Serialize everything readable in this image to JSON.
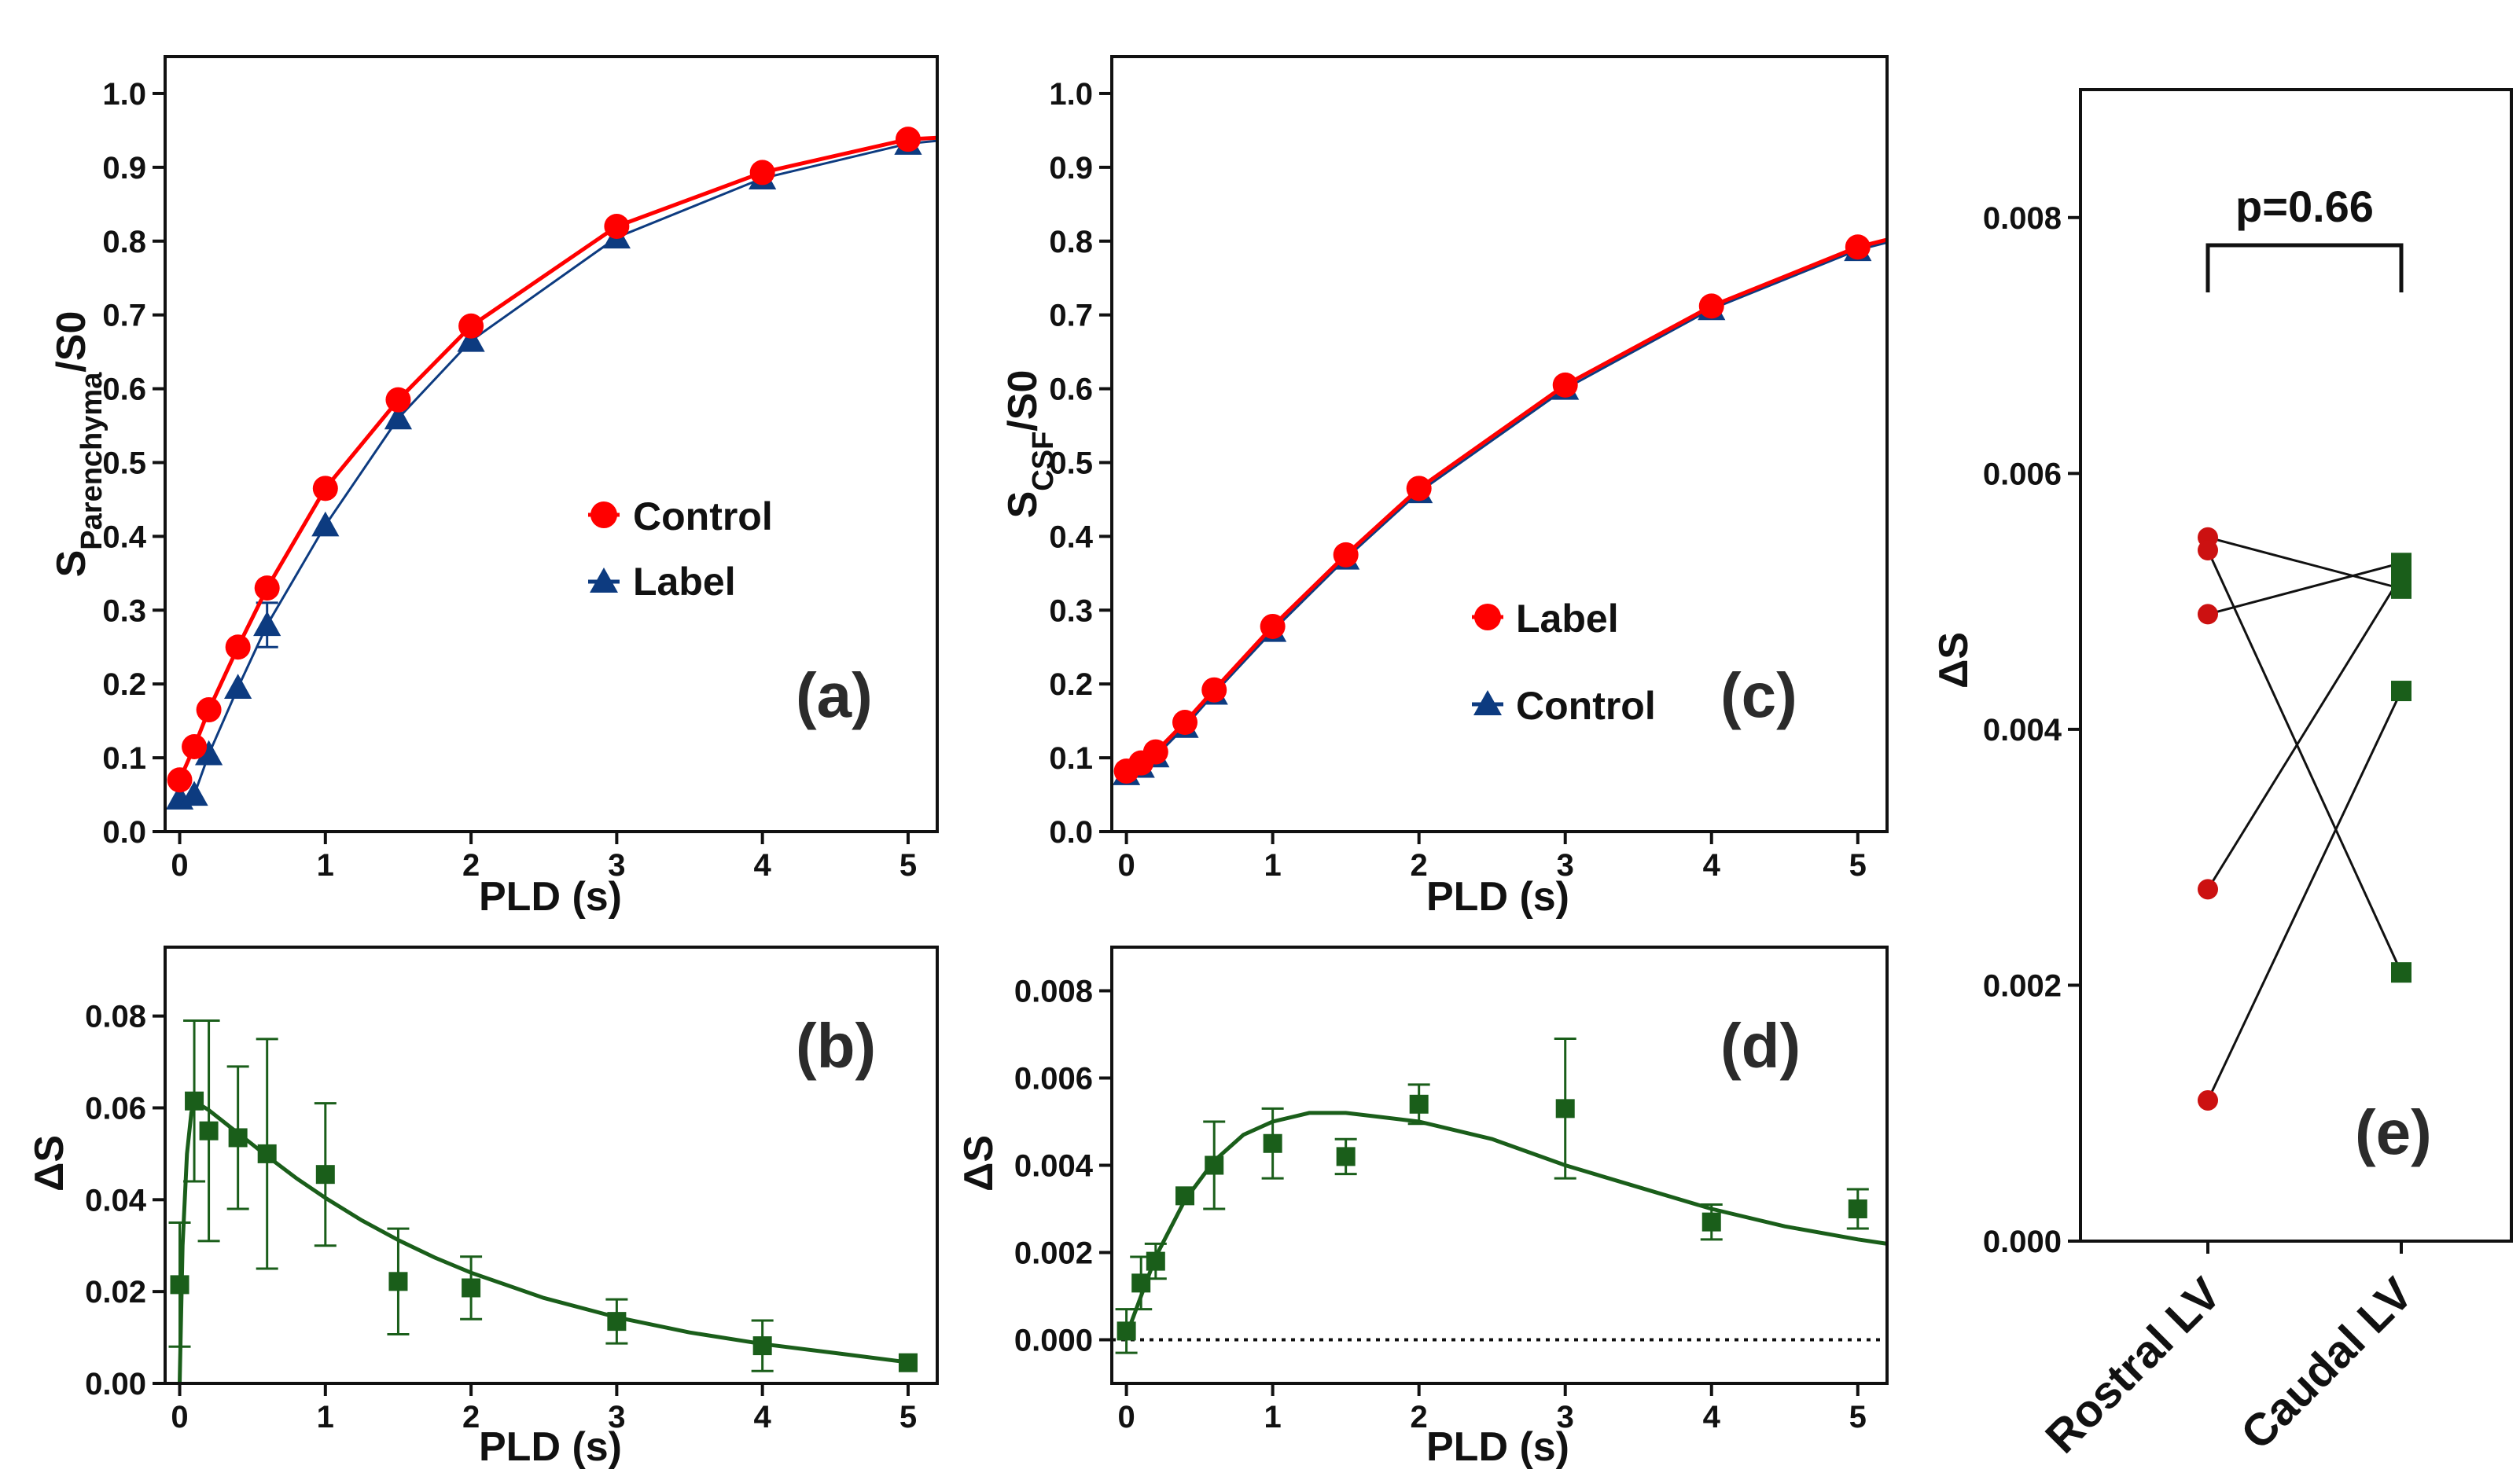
{
  "chart_data": [
    {
      "id": "a",
      "type": "line",
      "panel_label": "(a)",
      "xlabel": "PLD (s)",
      "ylabel_main": "S",
      "ylabel_sub": "Parenchyma",
      "ylabel_tail": "/S0",
      "xlim": [
        -0.1,
        5.2
      ],
      "ylim": [
        0,
        1.05
      ],
      "xticks": [
        0,
        1,
        2,
        3,
        4,
        5
      ],
      "yticks": [
        0.0,
        0.1,
        0.2,
        0.3,
        0.4,
        0.5,
        0.6,
        0.7,
        0.8,
        0.9,
        1.0
      ],
      "ytick_labels": [
        "0.0",
        "0.1",
        "0.2",
        "0.3",
        "0.4",
        "0.5",
        "0.6",
        "0.7",
        "0.8",
        "0.9",
        "1.0"
      ],
      "legend_position": "center-right",
      "series": [
        {
          "name": "Control",
          "marker": "circle",
          "color": "#ff0000",
          "x": [
            0,
            0.1,
            0.2,
            0.4,
            0.6,
            1,
            1.5,
            2,
            3,
            4,
            5
          ],
          "y": [
            0.07,
            0.115,
            0.165,
            0.25,
            0.33,
            0.465,
            0.585,
            0.685,
            0.82,
            0.893,
            0.938
          ],
          "err": [
            0,
            0,
            0,
            0,
            0,
            0,
            0,
            0,
            0,
            0,
            0
          ],
          "curve_x": [
            0,
            0.1,
            0.2,
            0.4,
            0.6,
            1,
            1.5,
            2,
            3,
            4,
            5,
            5.2
          ],
          "curve_y": [
            0.07,
            0.115,
            0.165,
            0.25,
            0.33,
            0.465,
            0.585,
            0.685,
            0.82,
            0.893,
            0.938,
            0.94
          ]
        },
        {
          "name": "Label",
          "marker": "triangle",
          "color": "#0d3b80",
          "x": [
            0,
            0.1,
            0.2,
            0.4,
            0.6,
            1,
            1.5,
            2,
            3,
            4,
            5
          ],
          "y": [
            0.045,
            0.05,
            0.105,
            0.195,
            0.28,
            0.415,
            0.56,
            0.665,
            0.805,
            0.885,
            0.932
          ],
          "err": [
            0,
            0,
            0,
            0,
            0.03,
            0,
            0,
            0,
            0,
            0,
            0
          ],
          "curve_x": [
            0,
            0.1,
            0.2,
            0.4,
            0.6,
            1,
            1.5,
            2,
            3,
            4,
            5,
            5.2
          ],
          "curve_y": [
            0.045,
            0.05,
            0.105,
            0.195,
            0.28,
            0.415,
            0.56,
            0.665,
            0.805,
            0.885,
            0.932,
            0.936
          ]
        }
      ]
    },
    {
      "id": "b",
      "type": "scatter",
      "panel_label": "(b)",
      "xlabel": "PLD (s)",
      "ylabel": "ΔS",
      "xlim": [
        -0.1,
        5.2
      ],
      "ylim": [
        0,
        0.095
      ],
      "xticks": [
        0,
        1,
        2,
        3,
        4,
        5
      ],
      "yticks": [
        0,
        0.02,
        0.04,
        0.06,
        0.08
      ],
      "ytick_labels": [
        "0.00",
        "0.02",
        "0.04",
        "0.06",
        "0.08"
      ],
      "series": [
        {
          "name": "ΔS",
          "marker": "square",
          "color": "#1a5e1a",
          "x": [
            0,
            0.1,
            0.2,
            0.4,
            0.6,
            1,
            1.5,
            2,
            3,
            4,
            5
          ],
          "y": [
            0.0215,
            0.0615,
            0.055,
            0.0535,
            0.05,
            0.0455,
            0.0222,
            0.0208,
            0.0135,
            0.0082,
            0.0045
          ],
          "err": [
            0.0135,
            0.0175,
            0.024,
            0.0155,
            0.025,
            0.0155,
            0.0115,
            0.0068,
            0.0048,
            0.0055,
            0
          ],
          "fit_x": [
            0,
            0.02,
            0.05,
            0.08,
            0.1,
            0.15,
            0.2,
            0.3,
            0.4,
            0.5,
            0.6,
            0.8,
            1,
            1.25,
            1.5,
            1.75,
            2,
            2.5,
            3,
            3.5,
            4,
            4.5,
            5
          ],
          "fit_y": [
            0,
            0.03,
            0.05,
            0.059,
            0.061,
            0.0605,
            0.0595,
            0.057,
            0.0545,
            0.052,
            0.0495,
            0.0447,
            0.0404,
            0.0355,
            0.0312,
            0.0274,
            0.0241,
            0.0186,
            0.0144,
            0.0111,
            0.0086,
            0.0066,
            0.0046
          ]
        }
      ]
    },
    {
      "id": "c",
      "type": "line",
      "panel_label": "(c)",
      "xlabel": "PLD (s)",
      "ylabel_main": "S",
      "ylabel_sub": "CSF",
      "ylabel_tail": "/S0",
      "xlim": [
        -0.1,
        5.2
      ],
      "ylim": [
        0,
        1.05
      ],
      "xticks": [
        0,
        1,
        2,
        3,
        4,
        5
      ],
      "yticks": [
        0.0,
        0.1,
        0.2,
        0.3,
        0.4,
        0.5,
        0.6,
        0.7,
        0.8,
        0.9,
        1.0
      ],
      "ytick_labels": [
        "0.0",
        "0.1",
        "0.2",
        "0.3",
        "0.4",
        "0.5",
        "0.6",
        "0.7",
        "0.8",
        "0.9",
        "1.0"
      ],
      "legend_position": "lower-center",
      "series": [
        {
          "name": "Label",
          "marker": "circle",
          "color": "#ff0000",
          "x": [
            0,
            0.1,
            0.2,
            0.4,
            0.6,
            1,
            1.5,
            2,
            3,
            4,
            5
          ],
          "y": [
            0.082,
            0.093,
            0.108,
            0.148,
            0.192,
            0.278,
            0.375,
            0.465,
            0.605,
            0.712,
            0.792
          ],
          "err": [
            0,
            0,
            0,
            0,
            0,
            0,
            0,
            0,
            0,
            0,
            0
          ],
          "curve_x": [
            0,
            0.1,
            0.2,
            0.4,
            0.6,
            1,
            1.5,
            2,
            3,
            4,
            5,
            5.2
          ],
          "curve_y": [
            0.082,
            0.093,
            0.108,
            0.148,
            0.192,
            0.278,
            0.375,
            0.465,
            0.605,
            0.712,
            0.792,
            0.802
          ]
        },
        {
          "name": "Control",
          "marker": "triangle",
          "color": "#0d3b80",
          "x": [
            0,
            0.1,
            0.2,
            0.4,
            0.6,
            1,
            1.5,
            2,
            3,
            4,
            5
          ],
          "y": [
            0.078,
            0.088,
            0.102,
            0.142,
            0.187,
            0.272,
            0.37,
            0.46,
            0.6,
            0.708,
            0.788
          ],
          "err": [
            0,
            0,
            0,
            0,
            0,
            0,
            0,
            0,
            0,
            0,
            0
          ],
          "curve_x": [
            0,
            0.1,
            0.2,
            0.4,
            0.6,
            1,
            1.5,
            2,
            3,
            4,
            5,
            5.2
          ],
          "curve_y": [
            0.078,
            0.088,
            0.102,
            0.142,
            0.187,
            0.272,
            0.37,
            0.46,
            0.6,
            0.708,
            0.788,
            0.798
          ]
        }
      ]
    },
    {
      "id": "d",
      "type": "scatter",
      "panel_label": "(d)",
      "xlabel": "PLD (s)",
      "ylabel": "ΔS",
      "xlim": [
        -0.1,
        5.2
      ],
      "ylim": [
        -0.001,
        0.009
      ],
      "xticks": [
        0,
        1,
        2,
        3,
        4,
        5
      ],
      "yticks": [
        0,
        0.002,
        0.004,
        0.006,
        0.008
      ],
      "ytick_labels": [
        "0.000",
        "0.002",
        "0.004",
        "0.006",
        "0.008"
      ],
      "zero_line": 0,
      "series": [
        {
          "name": "ΔS",
          "marker": "square",
          "color": "#1a5e1a",
          "x": [
            0,
            0.1,
            0.2,
            0.4,
            0.6,
            1,
            1.5,
            2,
            3,
            4,
            5
          ],
          "y": [
            0.0002,
            0.0013,
            0.0018,
            0.0033,
            0.004,
            0.0045,
            0.0042,
            0.0054,
            0.0053,
            0.0027,
            0.003
          ],
          "err": [
            0.0005,
            0.0006,
            0.0004,
            0,
            0.001,
            0.0008,
            0.0004,
            0.00045,
            0.0016,
            0.0004,
            0.00045
          ],
          "fit_x": [
            0,
            0.2,
            0.4,
            0.6,
            0.8,
            1,
            1.25,
            1.5,
            1.75,
            2,
            2.5,
            3,
            3.5,
            4,
            4.5,
            5,
            5.2
          ],
          "fit_y": [
            0.0001,
            0.0019,
            0.0032,
            0.0041,
            0.0047,
            0.005,
            0.0052,
            0.0052,
            0.0051,
            0.005,
            0.0046,
            0.004,
            0.0035,
            0.003,
            0.0026,
            0.0023,
            0.0022
          ]
        }
      ]
    },
    {
      "id": "e",
      "type": "scatter",
      "panel_label": "(e)",
      "ylabel": "ΔS",
      "ylim": [
        0,
        0.009
      ],
      "yticks": [
        0,
        0.002,
        0.004,
        0.006,
        0.008
      ],
      "ytick_labels": [
        "0.000",
        "0.002",
        "0.004",
        "0.006",
        "0.008"
      ],
      "categories": [
        "Rostral LV",
        "Caudal LV"
      ],
      "significance": "p=0.66",
      "pairs": [
        {
          "rostral": 0.0055,
          "caudal": 0.0051
        },
        {
          "rostral": 0.0054,
          "caudal": 0.0021
        },
        {
          "rostral": 0.0049,
          "caudal": 0.0053
        },
        {
          "rostral": 0.00275,
          "caudal": 0.0052
        },
        {
          "rostral": 0.0011,
          "caudal": 0.0043
        }
      ],
      "rostral_color": "#cc1111",
      "caudal_color": "#1a5e1a"
    }
  ]
}
